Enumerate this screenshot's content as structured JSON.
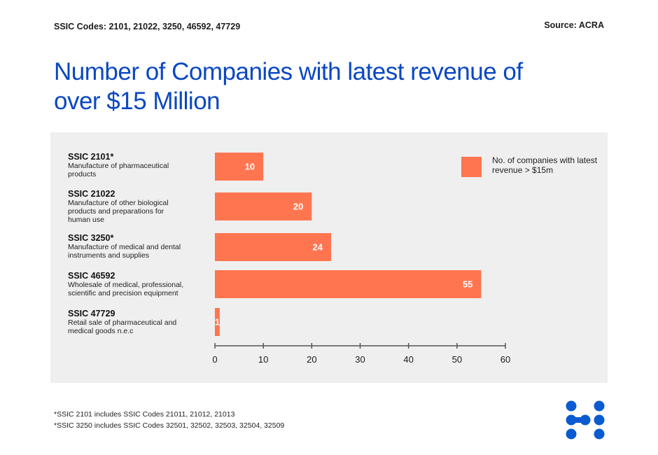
{
  "header": {
    "codes": "SSIC Codes: 2101, 21022, 3250, 46592, 47729",
    "source": "Source: ACRA",
    "title": "Number of Companies with latest revenue of over $15 Million"
  },
  "categories": [
    {
      "code": "SSIC 2101*",
      "desc": "Manufacture of pharmaceutical products"
    },
    {
      "code": "SSIC 21022",
      "desc": "Manufacture of other biological products and preparations for human use"
    },
    {
      "code": "SSIC 3250*",
      "desc": "Manufacture of medical and dental instruments and supplies"
    },
    {
      "code": "SSIC 46592",
      "desc": "Wholesale of medical, professional, scientific and precision equipment"
    },
    {
      "code": "SSIC 47729",
      "desc": "Retail sale of pharmaceutical and medical goods n.e.c"
    }
  ],
  "legend": {
    "label": "No. of companies with latest revenue > $15m",
    "color": "#ff7550"
  },
  "footnotes": [
    "*SSIC 2101 includes SSIC Codes 21011, 21012, 21013",
    "*SSIC 3250 includes SSIC Codes 32501, 32502, 32503, 32504, 32509"
  ],
  "logo": {
    "icon": "brand-logo-dots",
    "color": "#0a5bd1"
  },
  "chart_data": {
    "type": "bar",
    "orientation": "horizontal",
    "title": "Number of Companies with latest revenue of over $15 Million",
    "categories": [
      "SSIC 2101*",
      "SSIC 21022",
      "SSIC 3250*",
      "SSIC 46592",
      "SSIC 47729"
    ],
    "series": [
      {
        "name": "No. of companies with latest revenue > $15m",
        "values": [
          10,
          20,
          24,
          55,
          1
        ],
        "color": "#ff7550"
      }
    ],
    "data_labels": [
      "10",
      "20",
      "24",
      "55",
      "1"
    ],
    "xlim": [
      0,
      60
    ],
    "xticks": [
      0,
      10,
      20,
      30,
      40,
      50,
      60
    ],
    "xtick_labels": [
      "0",
      "10",
      "20",
      "30",
      "40",
      "50",
      "60"
    ],
    "xlabel": "",
    "ylabel": "",
    "grid": false,
    "legend_position": "top-right"
  }
}
